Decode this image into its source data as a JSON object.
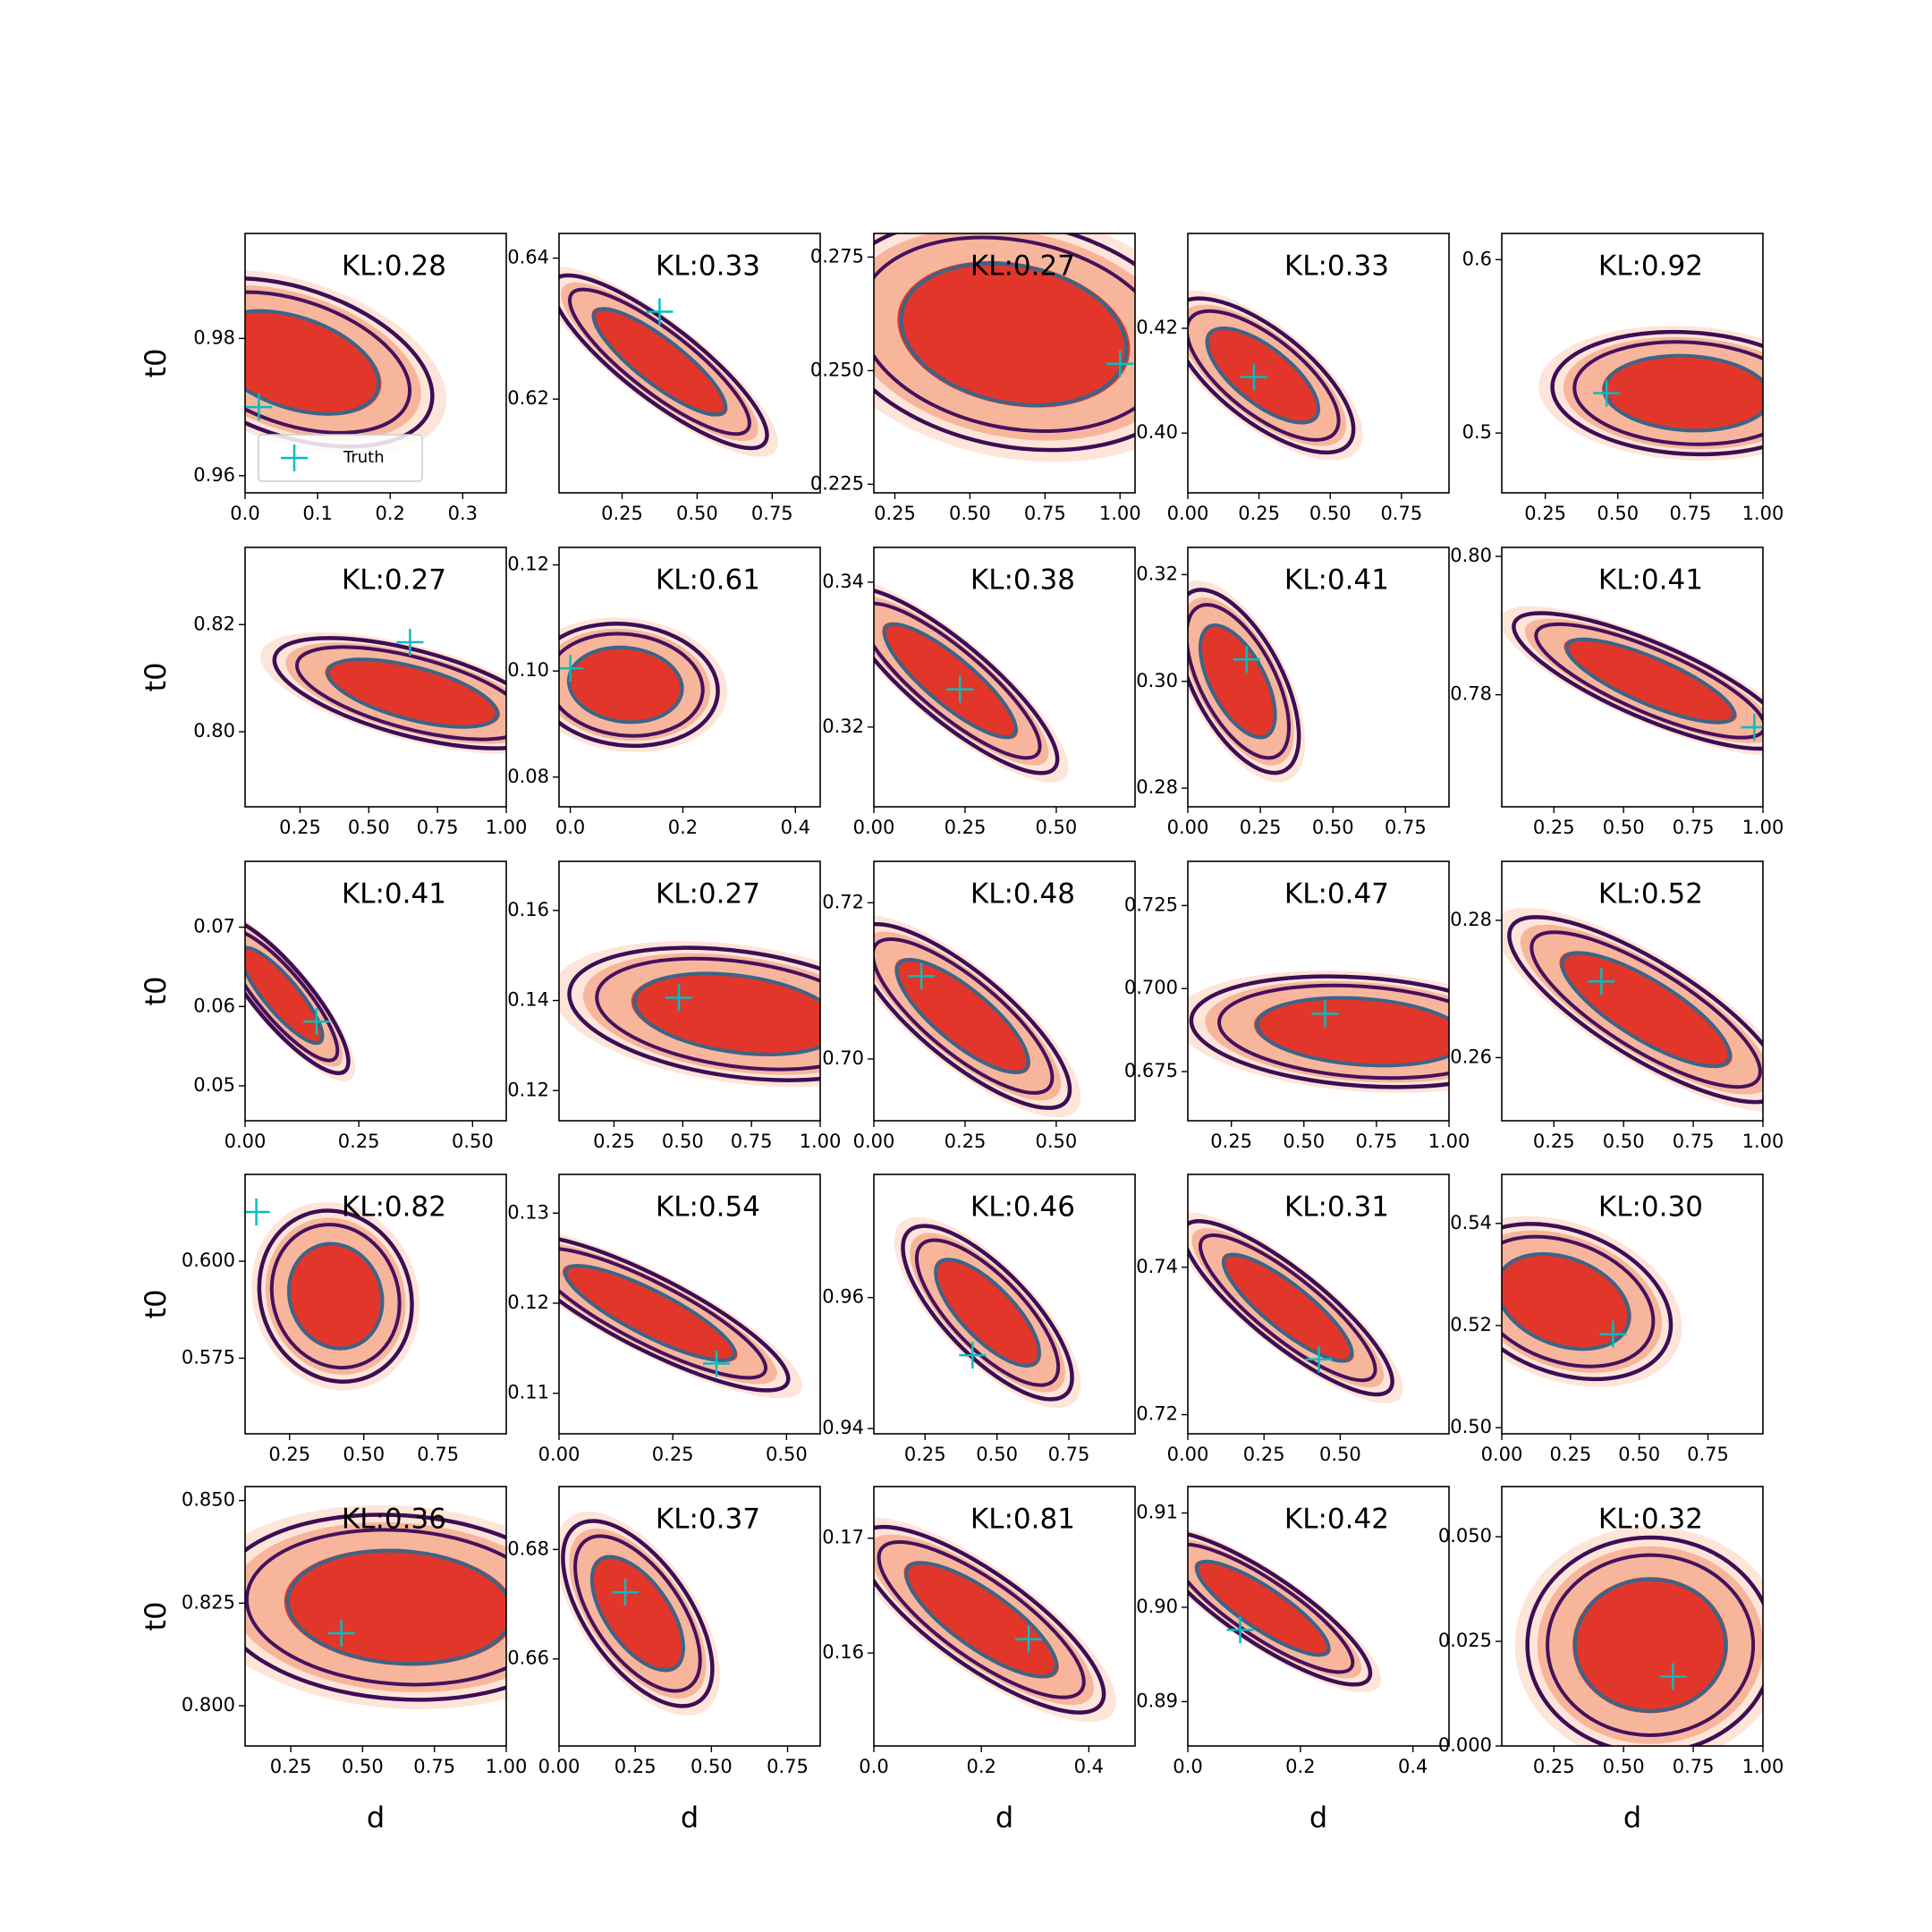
{
  "chart_data": [
    {
      "type": "contour",
      "title": "KL:0.28",
      "ylabel": "t0",
      "legend": "lower left",
      "xlim": [
        0,
        0.36
      ],
      "ylim": [
        0.9575,
        0.9953
      ],
      "xticks": [
        {
          "value": 0,
          "label": "0.0"
        },
        0.1,
        0.2,
        0.3
      ],
      "yticks": [
        0.96,
        0.98
      ],
      "series": [
        {
          "name": "Truth",
          "color": "#00bfbf",
          "x": [
            0.019
          ],
          "y": [
            0.97
          ]
        }
      ],
      "density": {
        "mean": [
          0.067,
          0.9765
        ],
        "sd": [
          0.078,
          0.005
        ],
        "corr": -0.4
      }
    },
    {
      "type": "contour",
      "title": "KL:0.33",
      "xlim": [
        0.04,
        0.91
      ],
      "ylim": [
        0.6067,
        0.6435
      ],
      "xticks": [
        0.25,
        {
          "value": 0.5,
          "label": "0.50"
        },
        0.75
      ],
      "yticks": [
        0.62,
        0.64
      ],
      "series": [
        {
          "color": "#00bfbf",
          "x": [
            0.375
          ],
          "y": [
            0.6324
          ]
        }
      ],
      "density": {
        "mean": [
          0.375,
          0.6253
        ],
        "sd": [
          0.146,
          0.005
        ],
        "corr": -0.85
      }
    },
    {
      "type": "contour",
      "title": "KL:0.27",
      "xlim": [
        0.18,
        1.05
      ],
      "ylim": [
        0.2231,
        0.2802
      ],
      "xticks": [
        0.25,
        {
          "value": 0.5,
          "label": "0.50"
        },
        0.75,
        {
          "value": 1,
          "label": "1.00"
        }
      ],
      "yticks": [
        0.225,
        {
          "value": 0.25,
          "label": "0.250"
        },
        0.275
      ],
      "series": [
        {
          "color": "#00bfbf",
          "x": [
            1.0
          ],
          "y": [
            0.2515
          ]
        }
      ],
      "density": {
        "mean": [
          0.646,
          0.258
        ],
        "sd": [
          0.25,
          0.0104
        ],
        "corr": -0.2
      }
    },
    {
      "type": "contour",
      "title": "KL:0.33",
      "xlim": [
        0,
        0.917
      ],
      "ylim": [
        0.3886,
        0.4381
      ],
      "xticks": [
        {
          "value": 0,
          "label": "0.00"
        },
        0.25,
        {
          "value": 0.5,
          "label": "0.50"
        },
        0.75
      ],
      "yticks": [
        {
          "value": 0.4,
          "label": "0.40"
        },
        0.42
      ],
      "series": [
        {
          "color": "#00bfbf",
          "x": [
            0.232
          ],
          "y": [
            0.4107
          ]
        }
      ],
      "density": {
        "mean": [
          0.263,
          0.411
        ],
        "sd": [
          0.13,
          0.006
        ],
        "corr": -0.7
      }
    },
    {
      "type": "contour",
      "title": "KL:0.92",
      "xlim": [
        0.1,
        1.0
      ],
      "ylim": [
        0.4655,
        0.6151
      ],
      "xticks": [
        0.25,
        {
          "value": 0.5,
          "label": "0.50"
        },
        0.75,
        {
          "value": 1,
          "label": "1.00"
        }
      ],
      "yticks": [
        0.5,
        0.6
      ],
      "series": [
        {
          "color": "#00bfbf",
          "x": [
            0.461
          ],
          "y": [
            0.523
          ]
        }
      ],
      "density": {
        "mean": [
          0.74,
          0.523
        ],
        "sd": [
          0.19,
          0.0144
        ],
        "corr": -0.1
      }
    },
    {
      "type": "contour",
      "title": "KL:0.27",
      "ylabel": "t0",
      "xlim": [
        0.05,
        1.0
      ],
      "ylim": [
        0.786,
        0.8344
      ],
      "xticks": [
        0.25,
        {
          "value": 0.5,
          "label": "0.50"
        },
        0.75,
        {
          "value": 1,
          "label": "1.00"
        }
      ],
      "yticks": [
        {
          "value": 0.8,
          "label": "0.80"
        },
        0.82
      ],
      "series": [
        {
          "color": "#00bfbf",
          "x": [
            0.65
          ],
          "y": [
            0.8167
          ]
        }
      ],
      "density": {
        "mean": [
          0.659,
          0.8072
        ],
        "sd": [
          0.205,
          0.0042
        ],
        "corr": -0.6
      }
    },
    {
      "type": "contour",
      "title": "KL:0.61",
      "xlim": [
        -0.02,
        0.444
      ],
      "ylim": [
        0.0744,
        0.1233
      ],
      "xticks": [
        {
          "value": 0,
          "label": "0.0"
        },
        0.2,
        0.4
      ],
      "yticks": [
        0.08,
        {
          "value": 0.1,
          "label": "0.10"
        },
        0.12
      ],
      "series": [
        {
          "color": "#00bfbf",
          "x": [
            0.0
          ],
          "y": [
            0.1005
          ]
        }
      ],
      "density": {
        "mean": [
          0.098,
          0.0974
        ],
        "sd": [
          0.067,
          0.0047
        ],
        "corr": -0.1
      }
    },
    {
      "type": "contour",
      "title": "KL:0.38",
      "xlim": [
        0,
        0.716
      ],
      "ylim": [
        0.309,
        0.3448
      ],
      "xticks": [
        {
          "value": 0,
          "label": "0.00"
        },
        0.25,
        {
          "value": 0.5,
          "label": "0.50"
        }
      ],
      "yticks": [
        0.32,
        0.34
      ],
      "series": [
        {
          "color": "#00bfbf",
          "x": [
            0.236
          ],
          "y": [
            0.3252
          ]
        }
      ],
      "density": {
        "mean": [
          0.209,
          0.3264
        ],
        "sd": [
          0.12,
          0.0052
        ],
        "corr": -0.85
      }
    },
    {
      "type": "contour",
      "title": "KL:0.41",
      "xlim": [
        0,
        0.9
      ],
      "ylim": [
        0.2765,
        0.3251
      ],
      "xticks": [
        {
          "value": 0,
          "label": "0.00"
        },
        0.25,
        {
          "value": 0.5,
          "label": "0.50"
        },
        0.75
      ],
      "yticks": [
        0.28,
        {
          "value": 0.3,
          "label": "0.30"
        },
        0.32
      ],
      "series": [
        {
          "color": "#00bfbf",
          "x": [
            0.203
          ],
          "y": [
            0.3041
          ]
        }
      ],
      "density": {
        "mean": [
          0.172,
          0.3
        ],
        "sd": [
          0.086,
          0.007
        ],
        "corr": -0.6
      }
    },
    {
      "type": "contour",
      "title": "KL:0.41",
      "xlim": [
        0.063,
        1.0
      ],
      "ylim": [
        0.7638,
        0.8013
      ],
      "xticks": [
        0.25,
        {
          "value": 0.5,
          "label": "0.50"
        },
        0.75,
        {
          "value": 1,
          "label": "1.00"
        }
      ],
      "yticks": [
        0.78,
        {
          "value": 0.8,
          "label": "0.80"
        }
      ],
      "series": [
        {
          "color": "#00bfbf",
          "x": [
            0.969
          ],
          "y": [
            0.7753
          ]
        }
      ],
      "density": {
        "mean": [
          0.596,
          0.782
        ],
        "sd": [
          0.2,
          0.004
        ],
        "corr": -0.8
      }
    },
    {
      "type": "contour",
      "title": "KL:0.41",
      "ylabel": "t0",
      "xlim": [
        0,
        0.574
      ],
      "ylim": [
        0.0456,
        0.0783
      ],
      "xticks": [
        {
          "value": 0,
          "label": "0.00"
        },
        0.25,
        {
          "value": 0.5,
          "label": "0.50"
        }
      ],
      "yticks": [
        0.05,
        0.06,
        0.07
      ],
      "series": [
        {
          "color": "#00bfbf",
          "x": [
            0.157
          ],
          "y": [
            0.0581
          ]
        }
      ],
      "density": {
        "mean": [
          0.08,
          0.0614
        ],
        "sd": [
          0.06,
          0.004
        ],
        "corr": -0.85
      }
    },
    {
      "type": "contour",
      "title": "KL:0.27",
      "xlim": [
        0.05,
        1.0
      ],
      "ylim": [
        0.1133,
        0.1709
      ],
      "xticks": [
        0.25,
        {
          "value": 0.5,
          "label": "0.50"
        },
        0.75,
        {
          "value": 1,
          "label": "1.00"
        }
      ],
      "yticks": [
        0.12,
        0.14,
        0.16
      ],
      "series": [
        {
          "color": "#00bfbf",
          "x": [
            0.486
          ],
          "y": [
            0.1406
          ]
        }
      ],
      "density": {
        "mean": [
          0.7,
          0.137
        ],
        "sd": [
          0.25,
          0.006
        ],
        "corr": -0.3
      }
    },
    {
      "type": "contour",
      "title": "KL:0.48",
      "xlim": [
        0,
        0.716
      ],
      "ylim": [
        0.6921,
        0.7253
      ],
      "xticks": [
        {
          "value": 0,
          "label": "0.00"
        },
        0.25,
        {
          "value": 0.5,
          "label": "0.50"
        }
      ],
      "yticks": [
        {
          "value": 0.7,
          "label": "0.70"
        },
        0.72
      ],
      "series": [
        {
          "color": "#00bfbf",
          "x": [
            0.13
          ],
          "y": [
            0.7106
          ]
        }
      ],
      "density": {
        "mean": [
          0.243,
          0.7055
        ],
        "sd": [
          0.12,
          0.0048
        ],
        "corr": -0.8
      }
    },
    {
      "type": "contour",
      "title": "KL:0.47",
      "xlim": [
        0.1,
        1.0
      ],
      "ylim": [
        0.6602,
        0.7383
      ],
      "xticks": [
        0.25,
        {
          "value": 0.5,
          "label": "0.50"
        },
        0.75,
        {
          "value": 1,
          "label": "1.00"
        }
      ],
      "yticks": [
        0.675,
        {
          "value": 0.7,
          "label": "0.700"
        },
        0.725
      ],
      "series": [
        {
          "color": "#00bfbf",
          "x": [
            0.573
          ],
          "y": [
            0.6924
          ]
        }
      ],
      "density": {
        "mean": [
          0.7,
          0.687
        ],
        "sd": [
          0.24,
          0.0068
        ],
        "corr": -0.2
      }
    },
    {
      "type": "contour",
      "title": "KL:0.52",
      "xlim": [
        0.063,
        1.0
      ],
      "ylim": [
        0.2508,
        0.2886
      ],
      "xticks": [
        0.25,
        {
          "value": 0.5,
          "label": "0.50"
        },
        0.75,
        {
          "value": 1,
          "label": "1.00"
        }
      ],
      "yticks": [
        0.26,
        0.28
      ],
      "series": [
        {
          "color": "#00bfbf",
          "x": [
            0.42
          ],
          "y": [
            0.2711
          ]
        }
      ],
      "density": {
        "mean": [
          0.58,
          0.267
        ],
        "sd": [
          0.2,
          0.0055
        ],
        "corr": -0.8
      }
    },
    {
      "type": "contour",
      "title": "KL:0.82",
      "ylabel": "t0",
      "xlim": [
        0.1,
        0.98
      ],
      "ylim": [
        0.5555,
        0.6224
      ],
      "xticks": [
        0.25,
        {
          "value": 0.5,
          "label": "0.50"
        },
        0.75
      ],
      "yticks": [
        0.575,
        {
          "value": 0.6,
          "label": "0.600"
        }
      ],
      "series": [
        {
          "color": "#00bfbf",
          "x": [
            0.138
          ],
          "y": [
            0.6127
          ]
        }
      ],
      "density": {
        "mean": [
          0.405,
          0.591
        ],
        "sd": [
          0.105,
          0.009
        ],
        "corr": -0.1
      }
    },
    {
      "type": "contour",
      "title": "KL:0.54",
      "xlim": [
        0,
        0.574
      ],
      "ylim": [
        0.1055,
        0.1343
      ],
      "xticks": [
        {
          "value": 0,
          "label": "0.00"
        },
        0.25,
        {
          "value": 0.5,
          "label": "0.50"
        }
      ],
      "yticks": [
        0.11,
        0.12,
        0.13
      ],
      "series": [
        {
          "color": "#00bfbf",
          "x": [
            0.346
          ],
          "y": [
            0.1133
          ]
        }
      ],
      "density": {
        "mean": [
          0.2,
          0.1189
        ],
        "sd": [
          0.124,
          0.0035
        ],
        "corr": -0.85
      }
    },
    {
      "type": "contour",
      "title": "KL:0.46",
      "xlim": [
        0.072,
        0.98
      ],
      "ylim": [
        0.9392,
        0.9788
      ],
      "xticks": [
        0.25,
        {
          "value": 0.5,
          "label": "0.50"
        },
        0.75
      ],
      "yticks": [
        0.94,
        0.96
      ],
      "series": [
        {
          "color": "#00bfbf",
          "x": [
            0.415
          ],
          "y": [
            0.9512
          ]
        }
      ],
      "density": {
        "mean": [
          0.467,
          0.9577
        ],
        "sd": [
          0.12,
          0.0054
        ],
        "corr": -0.75
      }
    },
    {
      "type": "contour",
      "title": "KL:0.31",
      "xlim": [
        0,
        0.857
      ],
      "ylim": [
        0.7174,
        0.7526
      ],
      "xticks": [
        {
          "value": 0,
          "label": "0.00"
        },
        0.25,
        {
          "value": 0.5,
          "label": "0.50"
        }
      ],
      "yticks": [
        0.72,
        0.74
      ],
      "series": [
        {
          "color": "#00bfbf",
          "x": [
            0.43
          ],
          "y": [
            0.7275
          ]
        }
      ],
      "density": {
        "mean": [
          0.328,
          0.7345
        ],
        "sd": [
          0.14,
          0.0048
        ],
        "corr": -0.85
      }
    },
    {
      "type": "contour",
      "title": "KL:0.30",
      "xlim": [
        0,
        0.95
      ],
      "ylim": [
        0.4988,
        0.5496
      ],
      "xticks": [
        {
          "value": 0,
          "label": "0.00"
        },
        0.25,
        {
          "value": 0.5,
          "label": "0.50"
        },
        0.75
      ],
      "yticks": [
        {
          "value": 0.5,
          "label": "0.50"
        },
        0.52,
        0.54
      ],
      "series": [
        {
          "color": "#00bfbf",
          "x": [
            0.405
          ],
          "y": [
            0.5183
          ]
        }
      ],
      "density": {
        "mean": [
          0.223,
          0.5247
        ],
        "sd": [
          0.16,
          0.0062
        ],
        "corr": -0.3
      }
    },
    {
      "type": "contour",
      "title": "KL:0.36",
      "ylabel": "t0",
      "xlabel": "d",
      "xlim": [
        0.091,
        1.0
      ],
      "ylim": [
        0.7902,
        0.8534
      ],
      "xticks": [
        0.25,
        {
          "value": 0.5,
          "label": "0.50"
        },
        0.75,
        {
          "value": 1,
          "label": "1.00"
        }
      ],
      "yticks": [
        {
          "value": 0.8,
          "label": "0.800"
        },
        0.825,
        {
          "value": 0.85,
          "label": "0.850"
        }
      ],
      "series": [
        {
          "color": "#00bfbf",
          "x": [
            0.426
          ],
          "y": [
            0.8177
          ]
        }
      ],
      "density": {
        "mean": [
          0.63,
          0.824
        ],
        "sd": [
          0.26,
          0.0092
        ],
        "corr": -0.1
      }
    },
    {
      "type": "contour",
      "title": "KL:0.37",
      "xlabel": "d",
      "xlim": [
        0,
        0.857
      ],
      "ylim": [
        0.6441,
        0.6915
      ],
      "xticks": [
        {
          "value": 0,
          "label": "0.00"
        },
        0.25,
        {
          "value": 0.5,
          "label": "0.50"
        },
        0.75
      ],
      "yticks": [
        0.66,
        0.68
      ],
      "series": [
        {
          "color": "#00bfbf",
          "x": [
            0.217
          ],
          "y": [
            0.6722
          ]
        }
      ],
      "density": {
        "mean": [
          0.258,
          0.6683
        ],
        "sd": [
          0.1,
          0.0069
        ],
        "corr": -0.6
      }
    },
    {
      "type": "contour",
      "title": "KL:0.81",
      "xlabel": "d",
      "xlim": [
        0,
        0.486
      ],
      "ylim": [
        0.1519,
        0.1745
      ],
      "xticks": [
        {
          "value": 0,
          "label": "0.0"
        },
        0.2,
        0.4
      ],
      "yticks": [
        0.16,
        0.17
      ],
      "series": [
        {
          "color": "#00bfbf",
          "x": [
            0.288
          ],
          "y": [
            0.1612
          ]
        }
      ],
      "density": {
        "mean": [
          0.2,
          0.1629
        ],
        "sd": [
          0.093,
          0.0033
        ],
        "corr": -0.8
      }
    },
    {
      "type": "contour",
      "title": "KL:0.42",
      "xlabel": "d",
      "xlim": [
        0,
        0.464
      ],
      "ylim": [
        0.8853,
        0.9128
      ],
      "xticks": [
        {
          "value": 0,
          "label": "0.0"
        },
        0.2,
        0.4
      ],
      "yticks": [
        0.89,
        {
          "value": 0.9,
          "label": "0.90"
        },
        0.91
      ],
      "series": [
        {
          "color": "#00bfbf",
          "x": [
            0.093
          ],
          "y": [
            0.8976
          ]
        }
      ],
      "density": {
        "mean": [
          0.133,
          0.8999
        ],
        "sd": [
          0.078,
          0.0033
        ],
        "corr": -0.85
      }
    },
    {
      "type": "contour",
      "title": "KL:0.32",
      "xlabel": "d",
      "xlim": [
        0.063,
        1.0
      ],
      "ylim": [
        0,
        0.062
      ],
      "xticks": [
        0.25,
        {
          "value": 0.5,
          "label": "0.50"
        },
        0.75,
        {
          "value": 1,
          "label": "1.00"
        }
      ],
      "yticks": [
        {
          "value": 0,
          "label": "0.000"
        },
        0.025,
        {
          "value": 0.05,
          "label": "0.050"
        }
      ],
      "series": [
        {
          "color": "#00bfbf",
          "x": [
            0.677
          ],
          "y": [
            0.0166
          ]
        }
      ],
      "density": {
        "mean": [
          0.596,
          0.0241
        ],
        "sd": [
          0.18,
          0.0105
        ],
        "corr": 0
      }
    }
  ]
}
